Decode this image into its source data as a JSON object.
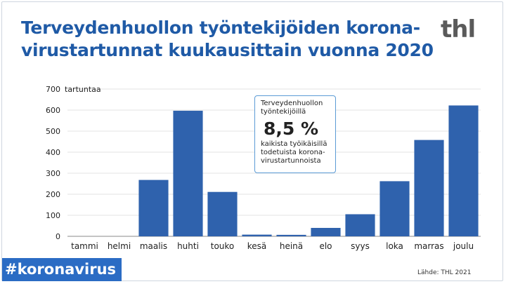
{
  "title_lines": [
    "Terveydenhuollon työntekijöiden korona-",
    "virustartunnat kuukausittain vuonna 2020"
  ],
  "logo": "thl",
  "callout": {
    "line1": "Terveydenhuollon työntekijöillä",
    "highlight": "8,5 %",
    "line2": "kaikista työikäisillä todetuista korona-virustartunnoista"
  },
  "hashtag": "#koronavirus",
  "source": "Lähde: THL 2021",
  "colors": {
    "bar": "#2f62ad",
    "title": "#1f5aa6",
    "grid": "#e3e3e3"
  },
  "chart_data": {
    "type": "bar",
    "categories": [
      "tammi",
      "helmi",
      "maalis",
      "huhti",
      "touko",
      "kesä",
      "heinä",
      "elo",
      "syys",
      "loka",
      "marras",
      "joulu"
    ],
    "values": [
      0,
      0,
      268,
      597,
      211,
      8,
      7,
      40,
      105,
      262,
      458,
      622
    ],
    "ylim": [
      0,
      700
    ],
    "yticks": [
      0,
      100,
      200,
      300,
      400,
      500,
      600,
      700
    ],
    "ylabel_top": "tartuntaa",
    "grid": true
  }
}
